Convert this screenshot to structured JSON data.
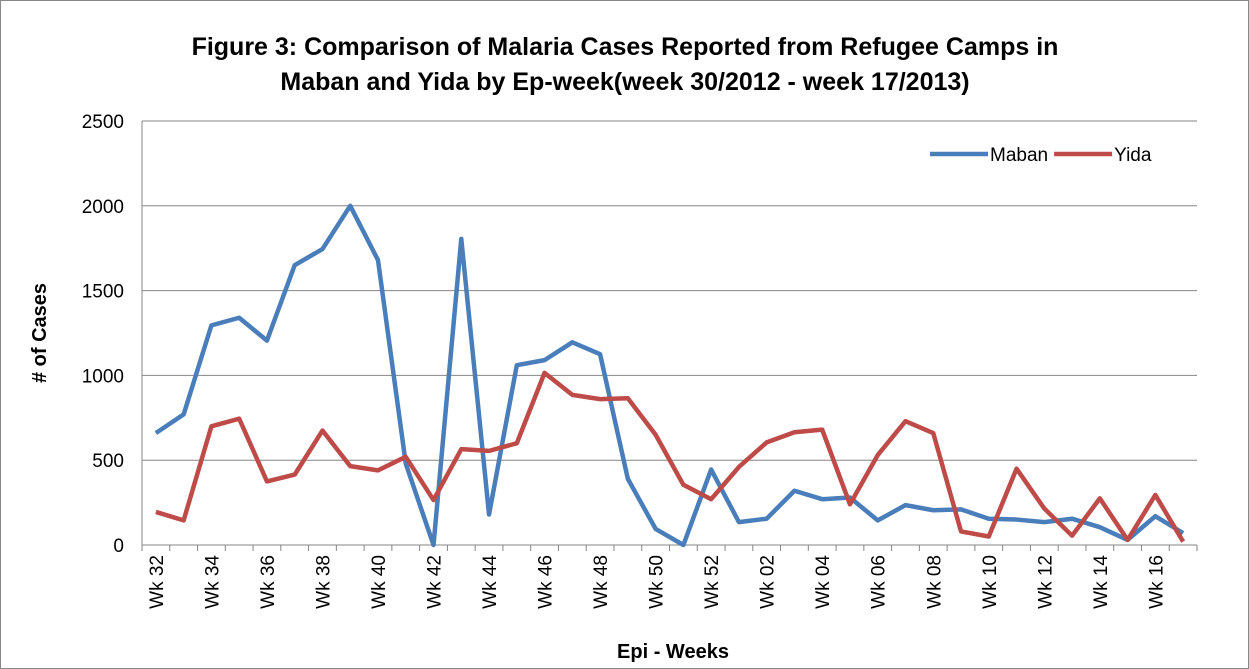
{
  "chart_data": {
    "type": "line",
    "title": [
      "Figure 3: Comparison of Malaria Cases Reported from Refugee Camps in",
      "Maban and Yida by Ep-week(week 30/2012 - week 17/2013)"
    ],
    "x_label": "Epi - Weeks",
    "y_label": "# of Cases",
    "categories": [
      "Wk 32",
      null,
      "Wk 34",
      null,
      "Wk 36",
      null,
      "Wk 38",
      null,
      "Wk 40",
      null,
      "Wk 42",
      null,
      "Wk 44",
      null,
      "Wk 46",
      null,
      "Wk 48",
      null,
      "Wk 50",
      null,
      "Wk 52",
      null,
      "Wk 02",
      null,
      "Wk 04",
      null,
      "Wk 06",
      null,
      "Wk 08",
      null,
      "Wk 10",
      null,
      "Wk 12",
      null,
      "Wk 14",
      null,
      "Wk 16",
      null
    ],
    "series": [
      {
        "name": "Maban",
        "color": "#4a7ebb",
        "values": [
          660,
          770,
          1295,
          1340,
          1205,
          1650,
          1745,
          2000,
          1680,
          480,
          0,
          1805,
          180,
          1060,
          1090,
          1195,
          1125,
          390,
          95,
          0,
          445,
          135,
          155,
          320,
          270,
          280,
          145,
          235,
          205,
          210,
          155,
          150,
          135,
          155,
          105,
          30,
          170,
          70
        ]
      },
      {
        "name": "Yida",
        "color": "#be4b48",
        "values": [
          195,
          145,
          700,
          745,
          375,
          415,
          675,
          465,
          440,
          520,
          265,
          565,
          555,
          600,
          1015,
          885,
          860,
          865,
          650,
          355,
          270,
          460,
          605,
          665,
          680,
          240,
          530,
          730,
          660,
          80,
          50,
          450,
          215,
          55,
          275,
          30,
          295,
          20
        ]
      }
    ],
    "ylim": [
      0,
      2500
    ],
    "yticks": [
      0,
      500,
      1000,
      1500,
      2000,
      2500
    ],
    "grid": true,
    "legend": "top-right"
  }
}
